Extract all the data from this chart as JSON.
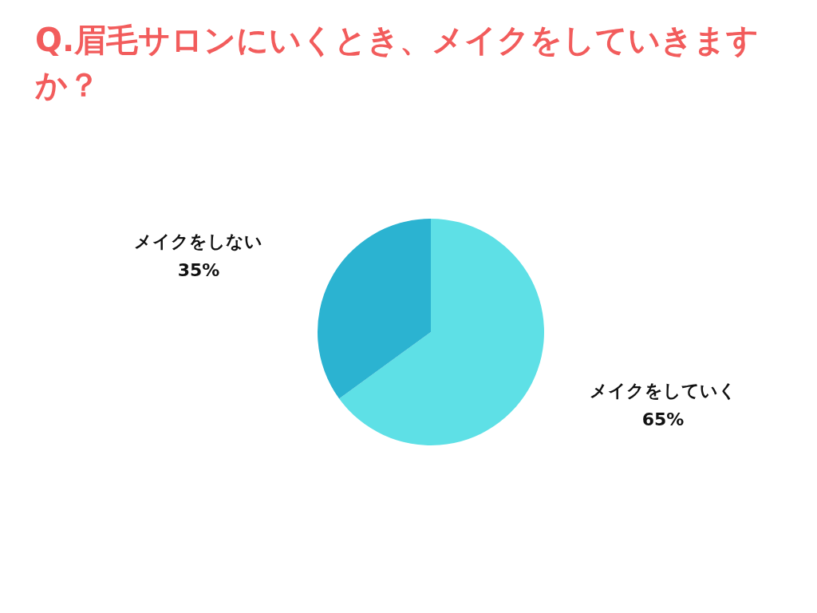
{
  "chart_data": {
    "type": "pie",
    "title": "Q.眉毛サロンにいくとき、メイクをしていきますか？",
    "categories": [
      "メイクをしていく",
      "メイクをしない"
    ],
    "values": [
      65,
      35
    ],
    "colors": [
      "#5ee0e6",
      "#2bb3d1"
    ],
    "value_labels": [
      "65%",
      "35%"
    ]
  }
}
